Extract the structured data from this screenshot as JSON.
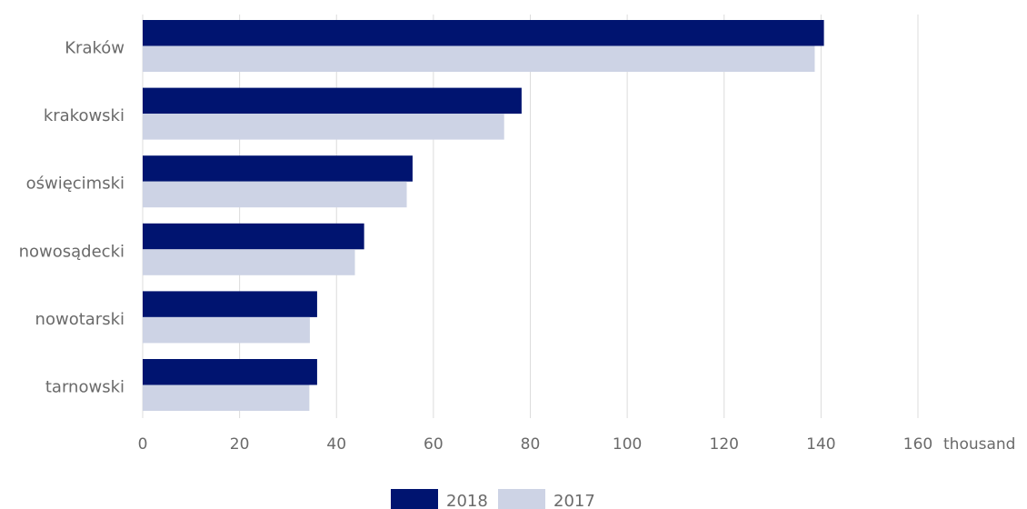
{
  "chart_data": {
    "type": "bar",
    "orientation": "horizontal",
    "categories": [
      "Kraków",
      "krakowski",
      "oświęcimski",
      "nowosądecki",
      "nowotarski",
      "tarnowski"
    ],
    "series": [
      {
        "name": "2018",
        "color": "#001470",
        "values": [
          140.6,
          78.2,
          55.7,
          45.7,
          36.0,
          36.0
        ]
      },
      {
        "name": "2017",
        "color": "#cdd3e5",
        "values": [
          138.7,
          74.6,
          54.5,
          43.8,
          34.5,
          34.4
        ]
      }
    ],
    "xlim": [
      0,
      160
    ],
    "xticks": [
      0,
      20,
      40,
      60,
      80,
      100,
      120,
      140,
      160
    ],
    "xunit": "thousand",
    "grid": "vertical",
    "legend": "bottom-center"
  }
}
